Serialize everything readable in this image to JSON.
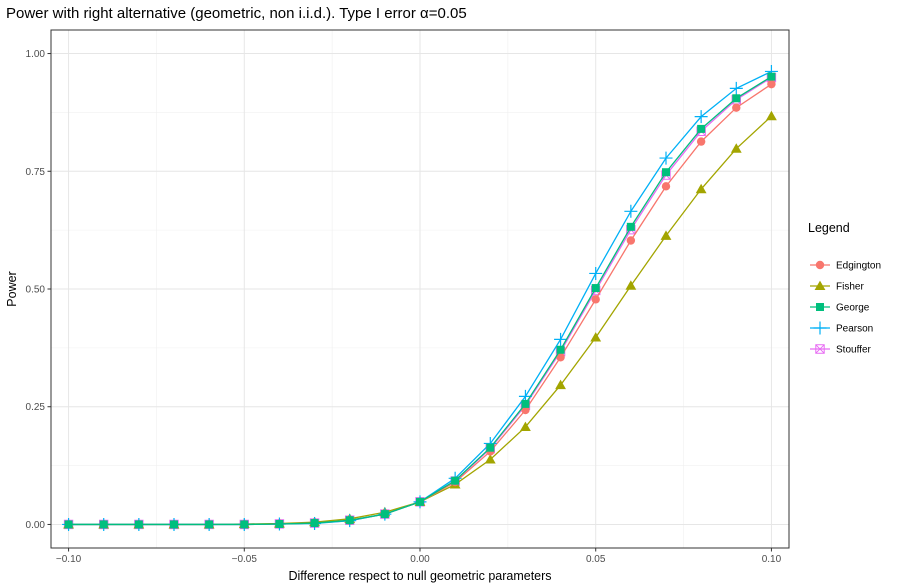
{
  "chart_data": {
    "type": "line",
    "title": "Power with right alternative (geometric, non i.i.d.). Type I error α=0.05",
    "xlabel": "Difference respect to null geometric parameters",
    "ylabel": "Power",
    "xlim": [
      -0.105,
      0.105
    ],
    "ylim": [
      -0.05,
      1.05
    ],
    "xticks": [
      -0.1,
      -0.05,
      0.0,
      0.05,
      0.1
    ],
    "xtick_labels": [
      "−0.10",
      "−0.05",
      "0.00",
      "0.05",
      "0.10"
    ],
    "yticks": [
      0.0,
      0.25,
      0.5,
      0.75,
      1.0
    ],
    "ytick_labels": [
      "0.00",
      "0.25",
      "0.50",
      "0.75",
      "1.00"
    ],
    "grid": true,
    "legend": {
      "title": "Legend",
      "placement": "right"
    },
    "x": [
      -0.1,
      -0.09,
      -0.08,
      -0.07,
      -0.06,
      -0.05,
      -0.04,
      -0.03,
      -0.02,
      -0.01,
      0.0,
      0.01,
      0.02,
      0.03,
      0.04,
      0.05,
      0.06,
      0.07,
      0.08,
      0.09,
      0.1
    ],
    "series": [
      {
        "name": "Edgington",
        "color": "#F8766D",
        "marker": "circle",
        "values": [
          0.0,
          0.0,
          0.0,
          0.0,
          0.0,
          0.0,
          0.001,
          0.003,
          0.008,
          0.022,
          0.048,
          0.09,
          0.155,
          0.243,
          0.355,
          0.478,
          0.603,
          0.718,
          0.813,
          0.885,
          0.935
        ]
      },
      {
        "name": "Fisher",
        "color": "#A3A500",
        "marker": "triangle",
        "values": [
          0.0,
          0.0,
          0.0,
          0.0,
          0.0,
          0.001,
          0.002,
          0.005,
          0.012,
          0.026,
          0.048,
          0.085,
          0.138,
          0.207,
          0.296,
          0.397,
          0.507,
          0.613,
          0.712,
          0.798,
          0.867
        ]
      },
      {
        "name": "George",
        "color": "#00BF7D",
        "marker": "square",
        "values": [
          0.0,
          0.0,
          0.0,
          0.0,
          0.0,
          0.0,
          0.001,
          0.003,
          0.009,
          0.022,
          0.048,
          0.093,
          0.163,
          0.256,
          0.371,
          0.502,
          0.632,
          0.748,
          0.84,
          0.905,
          0.951
        ]
      },
      {
        "name": "Pearson",
        "color": "#00B0F6",
        "marker": "plus",
        "values": [
          0.0,
          0.0,
          0.0,
          0.0,
          0.0,
          0.0,
          0.001,
          0.002,
          0.008,
          0.022,
          0.048,
          0.098,
          0.172,
          0.272,
          0.393,
          0.533,
          0.665,
          0.778,
          0.866,
          0.926,
          0.962
        ]
      },
      {
        "name": "Stouffer",
        "color": "#E76BF3",
        "marker": "boxcross",
        "values": [
          0.0,
          0.0,
          0.0,
          0.0,
          0.0,
          0.0,
          0.001,
          0.003,
          0.009,
          0.022,
          0.048,
          0.092,
          0.161,
          0.253,
          0.367,
          0.497,
          0.626,
          0.742,
          0.835,
          0.902,
          0.949
        ]
      }
    ]
  }
}
